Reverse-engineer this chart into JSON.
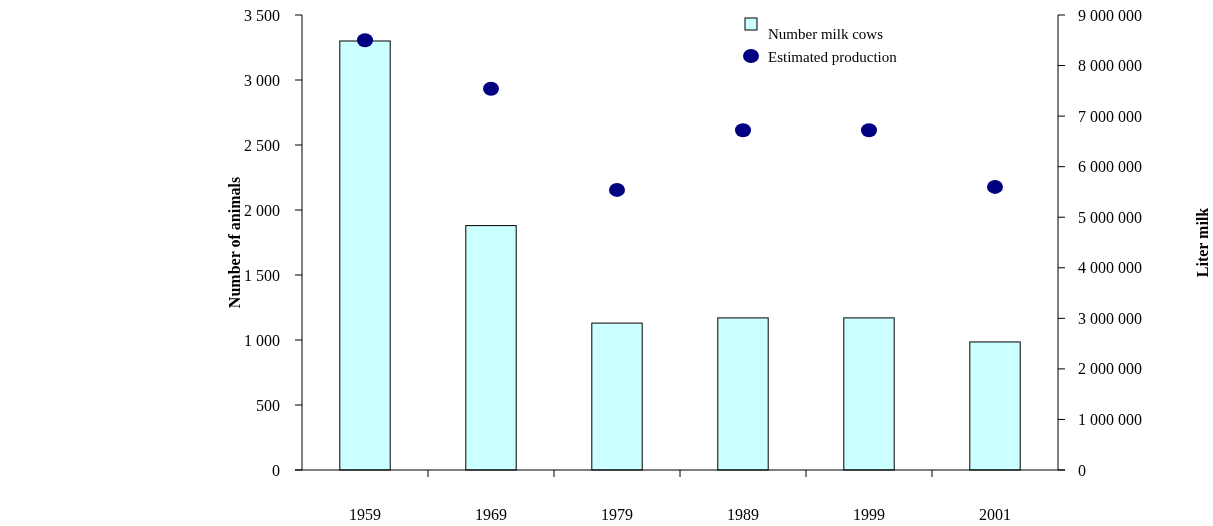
{
  "chart_data": {
    "type": "bar",
    "categories": [
      "1959",
      "1969",
      "1979",
      "1989",
      "1999",
      "2001"
    ],
    "series": [
      {
        "name": "Number milk cows",
        "color": "#ccffff",
        "values": [
          3300,
          1880,
          1130,
          1170,
          1170,
          985
        ]
      },
      {
        "name": "Estimated production",
        "type": "scatter",
        "axis": "y2",
        "color": "#000080",
        "values": [
          8500000,
          7540000,
          5540000,
          6720000,
          6720000,
          5600000
        ]
      }
    ],
    "ylabel": "Number of  animals",
    "y2label": "Liter milk",
    "ylim": [
      0,
      3500
    ],
    "yticks": [
      0,
      500,
      {
        "value": 1000,
        "label": "1 000"
      },
      {
        "value": 1500,
        "label": "1 500"
      },
      {
        "value": 2000,
        "label": "2 000"
      },
      {
        "value": 2500,
        "label": "2 500"
      },
      {
        "value": 3000,
        "label": "3 000"
      },
      {
        "value": 3500,
        "label": "3 500"
      }
    ],
    "y2lim": [
      0,
      9000000
    ],
    "y2ticks": [
      0,
      {
        "value": 1000000,
        "label": "1 000 000"
      },
      {
        "value": 2000000,
        "label": "2 000 000"
      },
      {
        "value": 3000000,
        "label": "3 000 000"
      },
      {
        "value": 4000000,
        "label": "4 000 000"
      },
      {
        "value": 5000000,
        "label": "5 000 000"
      },
      {
        "value": 6000000,
        "label": "6 000 000"
      },
      {
        "value": 7000000,
        "label": "7 000 000"
      },
      {
        "value": 8000000,
        "label": "8 000 000"
      },
      {
        "value": 9000000,
        "label": "9 000 000"
      }
    ],
    "legend": "top right",
    "marker": "circle",
    "grid": false
  }
}
